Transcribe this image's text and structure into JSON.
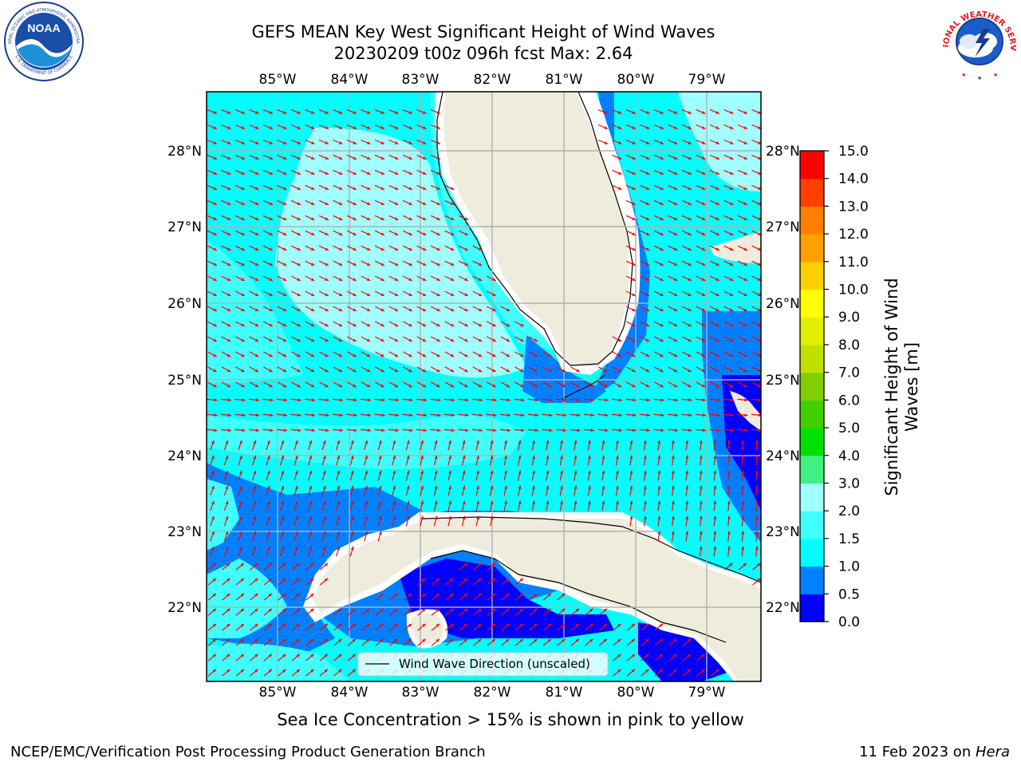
{
  "title": {
    "line1": "GEFS MEAN Key West Significant Height of Wind Waves",
    "line2": "20230209 t00z 096h fcst   Max: 2.64"
  },
  "map": {
    "lon_labels": [
      "85°W",
      "84°W",
      "83°W",
      "82°W",
      "81°W",
      "80°W",
      "79°W"
    ],
    "lat_labels": [
      "28°N",
      "27°N",
      "26°N",
      "25°N",
      "24°N",
      "23°N",
      "22°N"
    ],
    "legend_label": "Wind Wave Direction (unscaled)",
    "land_color": "#eeecdc",
    "arrow_color": "#ff0000",
    "grid_color": "#b0b0b0",
    "icon": "wind-wave-direction-arrow-icon"
  },
  "colorbar": {
    "label_line1": "Significant Height of Wind",
    "label_line2": "Waves [m]",
    "ticks": [
      "0.0",
      "0.5",
      "1.0",
      "1.5",
      "2.0",
      "3.0",
      "4.0",
      "5.0",
      "6.0",
      "7.0",
      "8.0",
      "9.0",
      "10.0",
      "11.0",
      "12.0",
      "13.0",
      "14.0",
      "15.0"
    ],
    "colors": [
      "#0000ff",
      "#0080ff",
      "#00ffff",
      "#40ffff",
      "#a0ffff",
      "#40f080",
      "#00e000",
      "#40d000",
      "#80d000",
      "#c0e000",
      "#e0f000",
      "#ffff00",
      "#ffd000",
      "#ffa000",
      "#ff8000",
      "#ff4000",
      "#ff0000"
    ]
  },
  "note": "Sea Ice Concentration > 15% is shown in pink to yellow",
  "footer": {
    "left": "NCEP/EMC/Verification Post Processing Product Generation Branch",
    "right_date": "11 Feb 2023 on ",
    "right_host": "Hera"
  },
  "logos": {
    "noaa_text": "NOAA",
    "noaa_ring_top": "NATIONAL OCEANIC AND ATMOSPHERIC ADMINISTRATION",
    "noaa_ring_bottom": "U.S. DEPARTMENT OF COMMERCE",
    "nws_ring": "NATIONAL WEATHER SERVICE"
  }
}
